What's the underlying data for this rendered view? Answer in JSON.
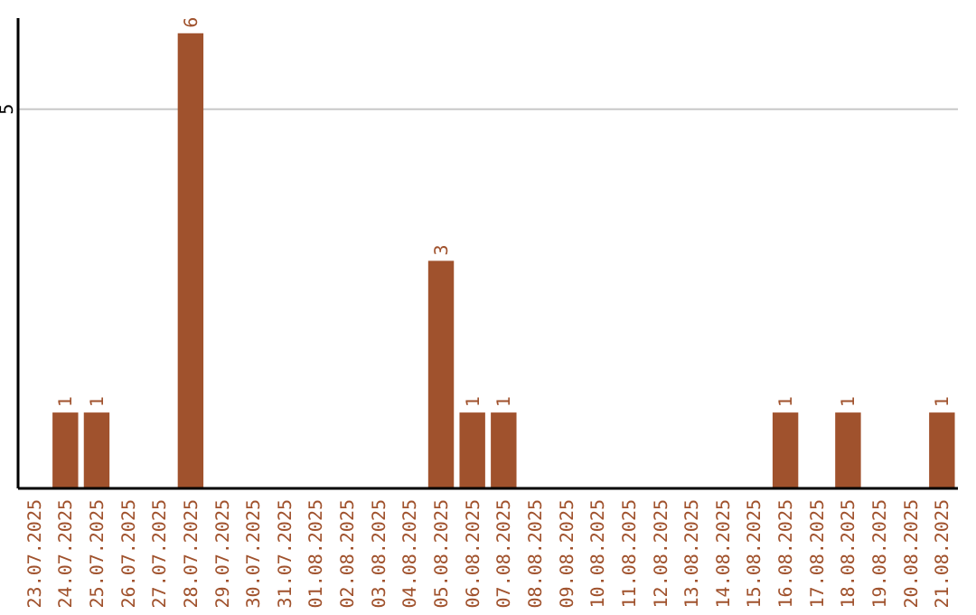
{
  "chart_data": {
    "type": "bar",
    "categories": [
      "23.07.2025",
      "24.07.2025",
      "25.07.2025",
      "26.07.2025",
      "27.07.2025",
      "28.07.2025",
      "29.07.2025",
      "30.07.2025",
      "31.07.2025",
      "01.08.2025",
      "02.08.2025",
      "03.08.2025",
      "04.08.2025",
      "05.08.2025",
      "06.08.2025",
      "07.08.2025",
      "08.08.2025",
      "09.08.2025",
      "10.08.2025",
      "11.08.2025",
      "12.08.2025",
      "13.08.2025",
      "14.08.2025",
      "15.08.2025",
      "16.08.2025",
      "17.08.2025",
      "18.08.2025",
      "19.08.2025",
      "20.08.2025",
      "21.08.2025"
    ],
    "values": [
      0,
      1,
      1,
      0,
      0,
      6,
      0,
      0,
      0,
      0,
      0,
      0,
      0,
      3,
      1,
      1,
      0,
      0,
      0,
      0,
      0,
      0,
      0,
      0,
      1,
      0,
      1,
      0,
      0,
      1
    ],
    "value_labels": [
      null,
      "1",
      "1",
      null,
      null,
      "6",
      null,
      null,
      null,
      null,
      null,
      null,
      null,
      "3",
      "1",
      "1",
      null,
      null,
      null,
      null,
      null,
      null,
      null,
      null,
      "1",
      null,
      "1",
      null,
      null,
      "1"
    ],
    "color": "#a0522d",
    "ylim": [
      0,
      6.2
    ],
    "yticks": [
      5
    ],
    "grid": "y"
  }
}
